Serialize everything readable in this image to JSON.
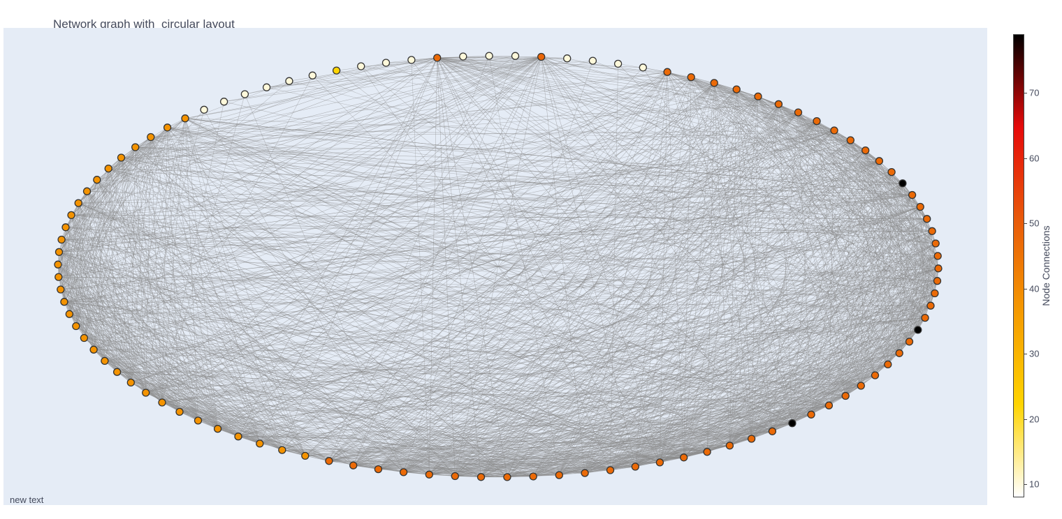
{
  "chart_title": "Network graph with  circular layout",
  "annotation": "new text",
  "colors": {
    "plot_bg": "#e5ecf6",
    "edge": "#888888",
    "node_outline": "#333333",
    "colorscale": [
      "#ffffff",
      "#ffd400",
      "#f59a00",
      "#e85a0a",
      "#e60a0a",
      "#000000"
    ]
  },
  "chart_data": {
    "type": "network",
    "layout": "circular",
    "colorbar": {
      "title": "Node Connections",
      "range": [
        8,
        79
      ],
      "ticks": [
        10,
        20,
        30,
        40,
        50,
        60,
        70
      ]
    },
    "node_connections": [
      47,
      47,
      47,
      47,
      47,
      47,
      47,
      47,
      47,
      47,
      47,
      47,
      47,
      10,
      10,
      10,
      10,
      48,
      10,
      10,
      10,
      47,
      10,
      10,
      10,
      22,
      10,
      10,
      10,
      10,
      10,
      10,
      38,
      38,
      38,
      38,
      38,
      38,
      38,
      38,
      38,
      38,
      38,
      38,
      38,
      38,
      38,
      38,
      38,
      38,
      38,
      38,
      38,
      38,
      38,
      38,
      38,
      38,
      38,
      38,
      38,
      38,
      38,
      38,
      38,
      47,
      47,
      47,
      47,
      47,
      47,
      47,
      47,
      47,
      47,
      47,
      47,
      47,
      47,
      47,
      47,
      47,
      47,
      47,
      79,
      47,
      47,
      47,
      47,
      47,
      47,
      47,
      47,
      79,
      47,
      47,
      47,
      47,
      47,
      47,
      47,
      47,
      47,
      47,
      47,
      79
    ]
  }
}
